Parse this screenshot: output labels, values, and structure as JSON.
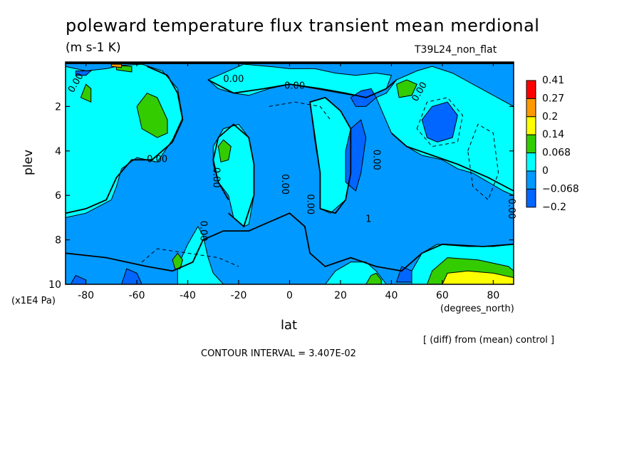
{
  "chart_data": {
    "type": "heatmap",
    "title": "poleward temperature flux transient mean merdional",
    "subtitle": "(m s-1 K)",
    "run_label": "T39L24_non_flat",
    "xlabel": "lat",
    "xunit": "(degrees_north)",
    "ylabel": "plev",
    "yunit": "(x1E4 Pa)",
    "xlim": [
      -88,
      88
    ],
    "ylim": [
      10,
      0
    ],
    "xticks": [
      -80,
      -60,
      -40,
      -20,
      0,
      20,
      40,
      60,
      80
    ],
    "yticks": [
      2,
      4,
      6,
      8,
      10
    ],
    "xtick_labels": [
      "-80",
      "-60",
      "-40",
      "-20",
      "0",
      "20",
      "40",
      "60",
      "80"
    ],
    "ytick_labels": [
      "2",
      "4",
      "6",
      "8",
      "10"
    ],
    "colorbar": {
      "labels": [
        "0.41",
        "0.27",
        "0.2",
        "0.14",
        "0.068",
        "0",
        "−0.068",
        "−0.2"
      ],
      "colors": [
        "#ff0000",
        "#ff9900",
        "#ffff00",
        "#33cc00",
        "#00ffff",
        "#0099ff",
        "#0066ff"
      ]
    },
    "contour_labels": [
      "0.00",
      "0.00",
      "0.00",
      "0.00",
      "0.00",
      "0.00",
      "0.00",
      "0.00",
      "0.00",
      "0.00",
      "0.00",
      "1"
    ],
    "contour_interval": "CONTOUR INTERVAL = 3.407E-02",
    "note": "[ (diff) from (mean) control ]",
    "regions": [
      {
        "cls": 5,
        "pts": [
          [
            -88,
            0.2
          ],
          [
            -80,
            0.4
          ],
          [
            -72,
            0.3
          ],
          [
            -66,
            0.15
          ],
          [
            -58,
            0.1
          ],
          [
            -50,
            0.4
          ],
          [
            -44,
            1.2
          ],
          [
            -42,
            2.5
          ],
          [
            -46,
            3.5
          ],
          [
            -52,
            4.5
          ],
          [
            -60,
            4.3
          ],
          [
            -66,
            4.8
          ],
          [
            -68,
            5.6
          ],
          [
            -70,
            6.2
          ],
          [
            -80,
            6.8
          ],
          [
            -88,
            7.0
          ]
        ]
      },
      {
        "cls": 5,
        "pts": [
          [
            -44,
            9.2
          ],
          [
            -40,
            8.2
          ],
          [
            -36,
            7.4
          ],
          [
            -34,
            7.8
          ],
          [
            -32,
            8.8
          ],
          [
            -30,
            9.5
          ],
          [
            -26,
            10
          ],
          [
            -44,
            10
          ]
        ]
      },
      {
        "cls": 5,
        "pts": [
          [
            -30,
            3.8
          ],
          [
            -26,
            3.0
          ],
          [
            -20,
            2.8
          ],
          [
            -16,
            3.4
          ],
          [
            -14,
            4.6
          ],
          [
            -14,
            6.0
          ],
          [
            -16,
            7.3
          ],
          [
            -18,
            7.4
          ],
          [
            -22,
            7.0
          ],
          [
            -24,
            6.0
          ],
          [
            -28,
            5.4
          ],
          [
            -30,
            4.6
          ]
        ]
      },
      {
        "cls": 5,
        "pts": [
          [
            -18,
            0.1
          ],
          [
            -8,
            0.2
          ],
          [
            0,
            0.3
          ],
          [
            10,
            0.3
          ],
          [
            18,
            0.5
          ],
          [
            26,
            0.6
          ],
          [
            34,
            0.5
          ],
          [
            40,
            0.6
          ],
          [
            38,
            1.2
          ],
          [
            30,
            1.6
          ],
          [
            20,
            1.4
          ],
          [
            10,
            1.2
          ],
          [
            0,
            1.0
          ],
          [
            -8,
            1.2
          ],
          [
            -16,
            1.5
          ],
          [
            -22,
            1.4
          ],
          [
            -28,
            1.2
          ],
          [
            -32,
            0.8
          ]
        ]
      },
      {
        "cls": 5,
        "pts": [
          [
            8,
            1.8
          ],
          [
            14,
            1.6
          ],
          [
            20,
            2.2
          ],
          [
            24,
            3.0
          ],
          [
            24,
            5.0
          ],
          [
            22,
            6.2
          ],
          [
            16,
            6.8
          ],
          [
            12,
            6.6
          ],
          [
            12,
            5.0
          ],
          [
            10,
            3.6
          ]
        ]
      },
      {
        "cls": 5,
        "pts": [
          [
            34,
            1.6
          ],
          [
            38,
            1.4
          ],
          [
            42,
            0.8
          ],
          [
            50,
            0.4
          ],
          [
            56,
            0.2
          ],
          [
            64,
            0.5
          ],
          [
            72,
            1.0
          ],
          [
            80,
            1.5
          ],
          [
            88,
            2.0
          ],
          [
            88,
            6.0
          ],
          [
            84,
            5.8
          ],
          [
            78,
            5.4
          ],
          [
            72,
            5.0
          ],
          [
            66,
            4.8
          ],
          [
            60,
            4.4
          ],
          [
            52,
            4.2
          ],
          [
            46,
            3.8
          ],
          [
            40,
            3.2
          ]
        ]
      },
      {
        "cls": 5,
        "pts": [
          [
            48,
            9.4
          ],
          [
            52,
            8.6
          ],
          [
            58,
            8.2
          ],
          [
            70,
            8.3
          ],
          [
            80,
            8.3
          ],
          [
            88,
            8.2
          ],
          [
            88,
            10
          ],
          [
            48,
            10
          ]
        ]
      },
      {
        "cls": 5,
        "pts": [
          [
            14,
            10
          ],
          [
            18,
            9.4
          ],
          [
            24,
            9.0
          ],
          [
            30,
            9.0
          ],
          [
            34,
            9.4
          ],
          [
            38,
            10
          ]
        ]
      },
      {
        "cls": 4,
        "pts": [
          [
            -60,
            2.0
          ],
          [
            -56,
            1.4
          ],
          [
            -52,
            1.6
          ],
          [
            -48,
            2.6
          ],
          [
            -48,
            3.2
          ],
          [
            -52,
            3.4
          ],
          [
            -58,
            3.0
          ]
        ]
      },
      {
        "cls": 4,
        "pts": [
          [
            -82,
            1.6
          ],
          [
            -80,
            1.0
          ],
          [
            -78,
            1.2
          ],
          [
            -78,
            1.8
          ]
        ]
      },
      {
        "cls": 4,
        "pts": [
          [
            -68,
            0.15
          ],
          [
            -62,
            0.2
          ],
          [
            -62,
            0.45
          ],
          [
            -68,
            0.35
          ]
        ]
      },
      {
        "cls": 4,
        "pts": [
          [
            -28,
            3.8
          ],
          [
            -26,
            3.5
          ],
          [
            -23,
            3.8
          ],
          [
            -24,
            4.4
          ],
          [
            -27,
            4.5
          ]
        ]
      },
      {
        "cls": 4,
        "pts": [
          [
            42,
            1.0
          ],
          [
            46,
            0.8
          ],
          [
            50,
            1.0
          ],
          [
            48,
            1.5
          ],
          [
            43,
            1.6
          ]
        ]
      },
      {
        "cls": 4,
        "pts": [
          [
            -46,
            8.9
          ],
          [
            -44,
            8.6
          ],
          [
            -42,
            8.9
          ],
          [
            -43,
            9.3
          ],
          [
            -45,
            9.3
          ]
        ]
      },
      {
        "cls": 4,
        "pts": [
          [
            54,
            10
          ],
          [
            56,
            9.4
          ],
          [
            62,
            8.8
          ],
          [
            74,
            8.9
          ],
          [
            86,
            9.2
          ],
          [
            88,
            9.4
          ],
          [
            88,
            10
          ]
        ]
      },
      {
        "cls": 4,
        "pts": [
          [
            30,
            10
          ],
          [
            32,
            9.6
          ],
          [
            34,
            9.5
          ],
          [
            36,
            9.8
          ],
          [
            36,
            10
          ]
        ]
      },
      {
        "cls": 3,
        "pts": [
          [
            60,
            10
          ],
          [
            62,
            9.5
          ],
          [
            70,
            9.4
          ],
          [
            80,
            9.5
          ],
          [
            88,
            9.7
          ],
          [
            88,
            10
          ]
        ]
      },
      {
        "cls": 2,
        "pts": [
          [
            -70,
            0.1
          ],
          [
            -66,
            0.1
          ],
          [
            -66,
            0.25
          ],
          [
            -70,
            0.2
          ]
        ]
      },
      {
        "cls": 7,
        "pts": [
          [
            52,
            2.6
          ],
          [
            56,
            2.0
          ],
          [
            62,
            1.8
          ],
          [
            66,
            2.4
          ],
          [
            64,
            3.4
          ],
          [
            58,
            3.6
          ],
          [
            54,
            3.4
          ]
        ]
      },
      {
        "cls": 7,
        "pts": [
          [
            22,
            4.0
          ],
          [
            24,
            3.0
          ],
          [
            28,
            2.6
          ],
          [
            30,
            3.4
          ],
          [
            28,
            5.0
          ],
          [
            26,
            5.8
          ],
          [
            22,
            5.4
          ]
        ]
      },
      {
        "cls": 7,
        "pts": [
          [
            24,
            1.6
          ],
          [
            28,
            1.3
          ],
          [
            32,
            1.2
          ],
          [
            34,
            1.6
          ],
          [
            30,
            2.0
          ],
          [
            26,
            2.0
          ]
        ]
      },
      {
        "cls": 7,
        "pts": [
          [
            -86,
            10
          ],
          [
            -84,
            9.6
          ],
          [
            -80,
            9.8
          ],
          [
            -80,
            10
          ]
        ]
      },
      {
        "cls": 7,
        "pts": [
          [
            -66,
            10
          ],
          [
            -64,
            9.3
          ],
          [
            -60,
            9.5
          ],
          [
            -58,
            10
          ]
        ]
      },
      {
        "cls": 7,
        "pts": [
          [
            42,
            9.9
          ],
          [
            44,
            9.2
          ],
          [
            48,
            9.4
          ],
          [
            48,
            9.9
          ]
        ]
      },
      {
        "cls": 7,
        "pts": [
          [
            -84,
            0.4
          ],
          [
            -78,
            0.4
          ],
          [
            -80,
            0.6
          ],
          [
            -84,
            0.6
          ]
        ]
      }
    ],
    "label_positions": [
      {
        "t": 0,
        "x": -83,
        "y": 1.0,
        "rot": -60
      },
      {
        "t": 1,
        "x": -52,
        "y": 4.5,
        "rot": 0
      },
      {
        "t": 2,
        "x": -30,
        "y": 5.2,
        "rot": 90
      },
      {
        "t": 3,
        "x": -22,
        "y": 0.9,
        "rot": 0
      },
      {
        "t": 4,
        "x": 2,
        "y": 1.2,
        "rot": 0
      },
      {
        "t": 5,
        "x": -3,
        "y": 5.5,
        "rot": 90
      },
      {
        "t": 6,
        "x": 7,
        "y": 6.4,
        "rot": 90
      },
      {
        "t": 7,
        "x": -35,
        "y": 7.6,
        "rot": 90
      },
      {
        "t": 8,
        "x": 33,
        "y": 4.4,
        "rot": 90
      },
      {
        "t": 9,
        "x": 52,
        "y": 1.4,
        "rot": -60
      },
      {
        "t": 10,
        "x": 86,
        "y": 6.6,
        "rot": 90
      },
      {
        "t": 11,
        "x": 31,
        "y": 7.2,
        "rot": 0
      }
    ],
    "contours": [
      [
        [
          -88,
          6.8
        ],
        [
          -80,
          6.6
        ],
        [
          -72,
          6.2
        ],
        [
          -68,
          5.2
        ],
        [
          -62,
          4.4
        ],
        [
          -54,
          4.4
        ],
        [
          -46,
          3.6
        ],
        [
          -42,
          2.6
        ],
        [
          -44,
          1.4
        ],
        [
          -48,
          0.6
        ],
        [
          -56,
          0.2
        ]
      ],
      [
        [
          -24,
          6.8
        ],
        [
          -18,
          7.4
        ],
        [
          -14,
          6.0
        ],
        [
          -14,
          4.6
        ],
        [
          -16,
          3.4
        ],
        [
          -22,
          2.8
        ],
        [
          -28,
          3.4
        ],
        [
          -30,
          4.4
        ],
        [
          -28,
          5.4
        ],
        [
          -24,
          6.2
        ]
      ],
      [
        [
          12,
          6.6
        ],
        [
          18,
          6.8
        ],
        [
          22,
          6.2
        ],
        [
          24,
          5.0
        ],
        [
          24,
          3.0
        ],
        [
          20,
          2.2
        ],
        [
          14,
          1.6
        ],
        [
          8,
          1.8
        ],
        [
          10,
          3.4
        ],
        [
          12,
          5.0
        ],
        [
          12,
          6.6
        ]
      ],
      [
        [
          -88,
          8.6
        ],
        [
          -72,
          8.8
        ],
        [
          -56,
          9.2
        ],
        [
          -46,
          9.4
        ],
        [
          -38,
          9.0
        ],
        [
          -34,
          8.0
        ],
        [
          -26,
          7.6
        ],
        [
          -16,
          7.6
        ],
        [
          -8,
          7.2
        ],
        [
          0,
          6.8
        ],
        [
          6,
          7.4
        ],
        [
          8,
          8.6
        ],
        [
          14,
          9.2
        ],
        [
          24,
          8.8
        ],
        [
          34,
          9.2
        ],
        [
          44,
          9.4
        ],
        [
          52,
          8.6
        ],
        [
          60,
          8.2
        ],
        [
          76,
          8.3
        ],
        [
          88,
          8.2
        ]
      ],
      [
        [
          40,
          3.2
        ],
        [
          46,
          3.8
        ],
        [
          56,
          4.2
        ],
        [
          66,
          4.6
        ],
        [
          78,
          5.2
        ],
        [
          88,
          5.8
        ]
      ],
      [
        [
          -32,
          0.8
        ],
        [
          -22,
          1.4
        ],
        [
          -10,
          1.2
        ],
        [
          0,
          1.0
        ],
        [
          12,
          1.2
        ],
        [
          22,
          1.4
        ],
        [
          30,
          1.6
        ],
        [
          38,
          1.2
        ],
        [
          42,
          0.8
        ]
      ]
    ],
    "dashed": [
      [
        [
          -58,
          9.0
        ],
        [
          -52,
          8.4
        ],
        [
          -40,
          8.6
        ],
        [
          -28,
          8.8
        ],
        [
          -20,
          9.2
        ]
      ],
      [
        [
          50,
          3.0
        ],
        [
          54,
          1.8
        ],
        [
          62,
          1.6
        ],
        [
          68,
          2.4
        ],
        [
          66,
          3.6
        ],
        [
          56,
          3.8
        ],
        [
          50,
          3.0
        ]
      ],
      [
        [
          70,
          4.0
        ],
        [
          74,
          2.8
        ],
        [
          80,
          3.2
        ],
        [
          82,
          5.0
        ],
        [
          78,
          6.2
        ],
        [
          72,
          5.6
        ],
        [
          70,
          4.0
        ]
      ],
      [
        [
          -8,
          2.0
        ],
        [
          2,
          1.8
        ],
        [
          12,
          2.0
        ],
        [
          16,
          2.6
        ]
      ]
    ]
  }
}
